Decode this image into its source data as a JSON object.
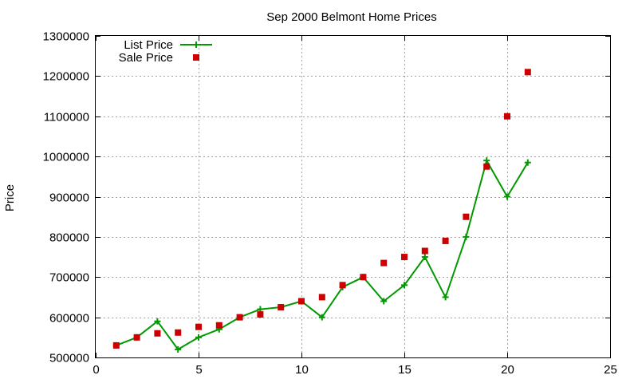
{
  "chart_data": {
    "type": "line",
    "title": "Sep 2000 Belmont Home Prices",
    "xlabel": "",
    "ylabel": "Price",
    "xlim": [
      0,
      25
    ],
    "ylim": [
      500000,
      1300000
    ],
    "xticks": [
      0,
      5,
      10,
      15,
      20,
      25
    ],
    "yticks": [
      500000,
      600000,
      700000,
      800000,
      900000,
      1000000,
      1100000,
      1200000,
      1300000
    ],
    "grid": true,
    "legend_position": "top-left",
    "series": [
      {
        "name": "List Price",
        "style": "line-with-plus-markers",
        "color": "#009900",
        "x": [
          1,
          2,
          3,
          4,
          5,
          6,
          7,
          8,
          9,
          10,
          11,
          12,
          13,
          14,
          15,
          16,
          17,
          18,
          19,
          20,
          21
        ],
        "y": [
          530000,
          550000,
          590000,
          520000,
          550000,
          570000,
          600000,
          620000,
          625000,
          640000,
          600000,
          675000,
          700000,
          640000,
          680000,
          750000,
          650000,
          800000,
          990000,
          900000,
          985000
        ]
      },
      {
        "name": "Sale Price",
        "style": "square-markers",
        "color": "#cc0000",
        "x": [
          1,
          2,
          3,
          4,
          5,
          6,
          7,
          8,
          9,
          10,
          11,
          12,
          13,
          14,
          15,
          16,
          17,
          18,
          19,
          20,
          21
        ],
        "y": [
          530000,
          550000,
          560000,
          562000,
          576000,
          580000,
          600000,
          607000,
          625000,
          640000,
          650000,
          680000,
          700000,
          735000,
          750000,
          765000,
          790000,
          850000,
          975000,
          1100000,
          1210000
        ]
      }
    ]
  }
}
